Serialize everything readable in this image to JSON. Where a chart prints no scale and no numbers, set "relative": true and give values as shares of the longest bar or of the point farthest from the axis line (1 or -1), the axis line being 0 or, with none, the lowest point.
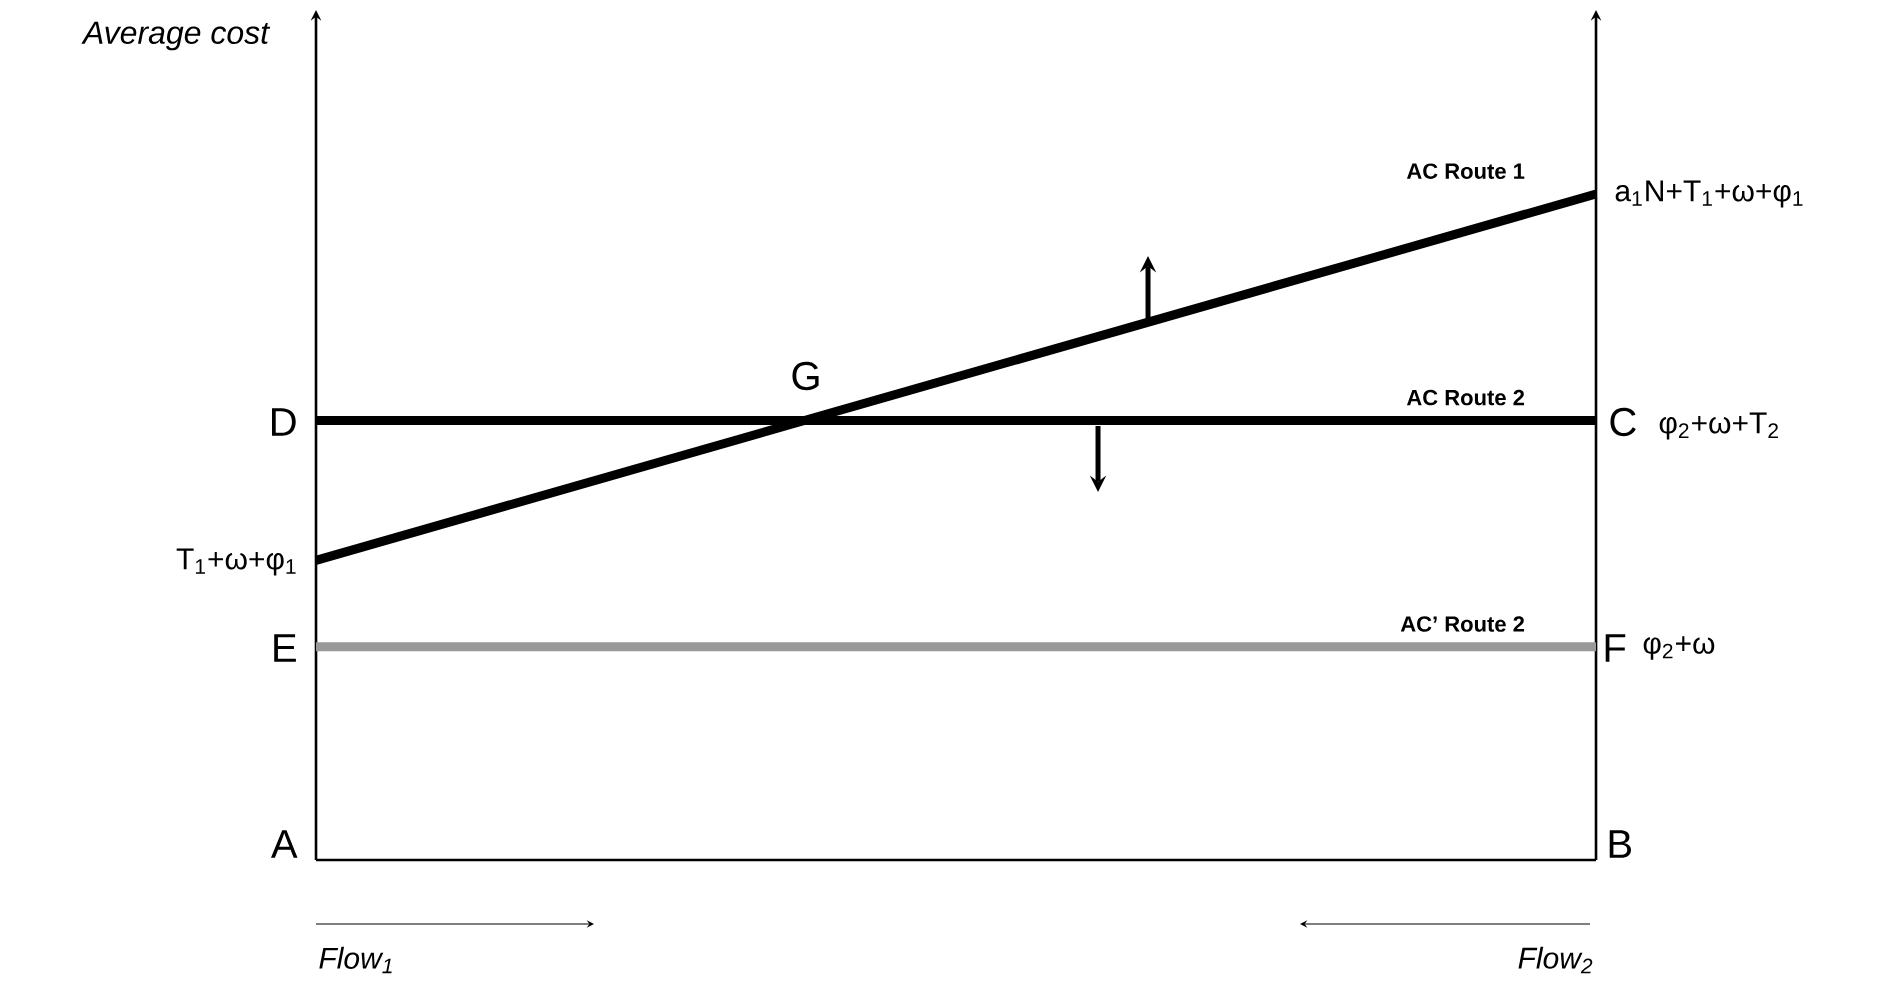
{
  "chart_data": {
    "type": "line",
    "relative": true,
    "ylabel": "Average cost",
    "categories": [
      null,
      null
    ],
    "series": [
      {
        "name": "AC Route 1",
        "color": "#000000",
        "values": [
          0.45,
          1
        ]
      },
      {
        "name": "AC Route 2",
        "color": "#000000",
        "values": [
          0.66,
          0.66
        ]
      },
      {
        "name": "AC’ Route 2",
        "color": "#999999",
        "values": [
          0.32,
          0.32
        ]
      }
    ],
    "annotations": [
      "a$_{1}$N+T$_{1}$+ω+φ$_{1}$",
      "G",
      "D",
      "C",
      "φ$_{2}$+ω+T$_{2}$",
      "T$_{1}$+ω+φ$_{1}$",
      "E",
      "F",
      "φ$_{2}$+ω",
      "A",
      "B",
      "Flow$_{1}$",
      "Flow$_{2}$"
    ]
  }
}
